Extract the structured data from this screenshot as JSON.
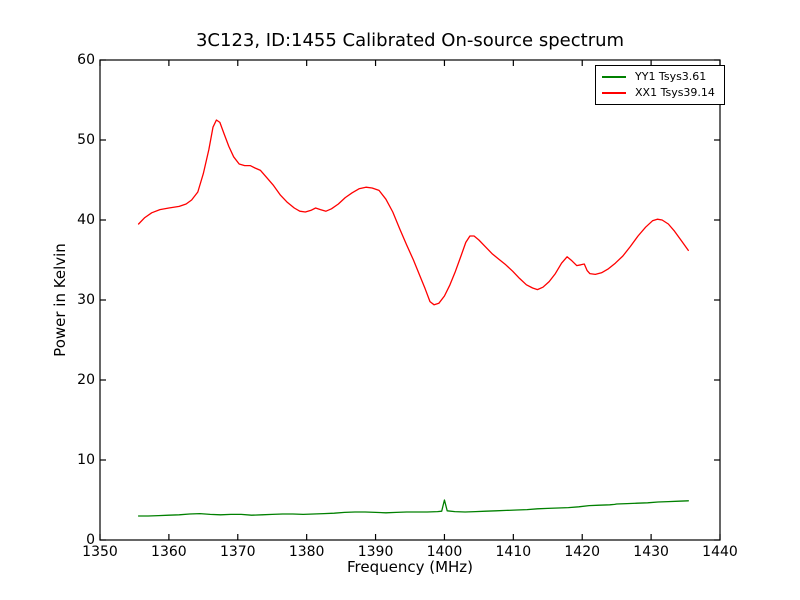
{
  "figure": {
    "background": "#ffffff"
  },
  "chart_data": {
    "type": "line",
    "title": "3C123, ID:1455 Calibrated On-source spectrum",
    "xlabel": "Frequency (MHz)",
    "ylabel": "Power in Kelvin",
    "xlim": [
      1350,
      1440
    ],
    "ylim": [
      0,
      60
    ],
    "xticks": [
      1350,
      1360,
      1370,
      1380,
      1390,
      1400,
      1410,
      1420,
      1430,
      1440
    ],
    "yticks": [
      0,
      10,
      20,
      30,
      40,
      50,
      60
    ],
    "grid": false,
    "tick_direction": "in",
    "axes_color": "#000000",
    "legend": {
      "position": "upper right",
      "border_color": "#000000",
      "entries": [
        {
          "label": "YY1 Tsys3.61",
          "color": "#008000"
        },
        {
          "label": "XX1 Tsys39.14",
          "color": "#ff0000"
        }
      ]
    },
    "series": [
      {
        "name": "YY1 Tsys3.61",
        "color": "#008000",
        "x": [
          1355.6,
          1357.0,
          1358.5,
          1360.0,
          1361.5,
          1363.0,
          1364.5,
          1366.0,
          1367.5,
          1369.0,
          1370.5,
          1372.0,
          1373.5,
          1375.0,
          1376.5,
          1378.0,
          1379.5,
          1381.0,
          1382.5,
          1384.0,
          1385.5,
          1387.0,
          1388.5,
          1390.0,
          1391.5,
          1393.0,
          1394.5,
          1396.0,
          1397.5,
          1399.0,
          1399.6,
          1400.0,
          1400.4,
          1401.5,
          1403.0,
          1404.5,
          1406.0,
          1407.5,
          1409.0,
          1410.5,
          1412.0,
          1413.5,
          1415.0,
          1416.5,
          1418.0,
          1419.5,
          1421.0,
          1422.5,
          1424.0,
          1424.7,
          1425.0,
          1426.5,
          1428.0,
          1429.5,
          1431.0,
          1432.5,
          1434.0,
          1435.4
        ],
        "y": [
          3.0,
          3.0,
          3.05,
          3.1,
          3.15,
          3.25,
          3.3,
          3.2,
          3.15,
          3.2,
          3.2,
          3.1,
          3.15,
          3.2,
          3.25,
          3.25,
          3.2,
          3.25,
          3.3,
          3.35,
          3.45,
          3.5,
          3.5,
          3.45,
          3.4,
          3.45,
          3.5,
          3.5,
          3.5,
          3.55,
          3.6,
          5.0,
          3.65,
          3.55,
          3.5,
          3.55,
          3.6,
          3.65,
          3.7,
          3.75,
          3.8,
          3.9,
          3.95,
          4.0,
          4.05,
          4.15,
          4.3,
          4.35,
          4.4,
          4.45,
          4.5,
          4.55,
          4.6,
          4.65,
          4.75,
          4.8,
          4.85,
          4.9
        ]
      },
      {
        "name": "XX1 Tsys39.14",
        "color": "#ff0000",
        "x": [
          1355.6,
          1356.5,
          1357.5,
          1358.7,
          1360.0,
          1361.5,
          1362.5,
          1363.3,
          1364.2,
          1365.0,
          1365.8,
          1366.4,
          1366.9,
          1367.4,
          1368.0,
          1368.7,
          1369.4,
          1370.2,
          1371.0,
          1371.8,
          1372.5,
          1373.3,
          1374.2,
          1375.2,
          1376.2,
          1377.2,
          1378.2,
          1379.0,
          1379.8,
          1380.6,
          1381.3,
          1382.0,
          1382.8,
          1383.6,
          1384.6,
          1385.6,
          1386.6,
          1387.6,
          1388.6,
          1389.5,
          1390.5,
          1391.5,
          1392.5,
          1393.5,
          1394.5,
          1395.5,
          1396.4,
          1397.2,
          1397.9,
          1398.5,
          1399.2,
          1400.0,
          1400.8,
          1401.6,
          1402.4,
          1403.1,
          1403.7,
          1404.3,
          1405.0,
          1405.9,
          1406.9,
          1407.9,
          1408.9,
          1409.9,
          1410.9,
          1411.9,
          1412.8,
          1413.5,
          1414.3,
          1415.2,
          1416.1,
          1417.0,
          1417.8,
          1418.5,
          1419.2,
          1419.8,
          1420.3,
          1420.7,
          1421.1,
          1421.9,
          1422.8,
          1423.8,
          1424.8,
          1425.9,
          1427.0,
          1428.1,
          1429.2,
          1430.2,
          1430.9,
          1431.6,
          1432.5,
          1433.4,
          1434.4,
          1435.4
        ],
        "y": [
          39.5,
          40.3,
          40.9,
          41.3,
          41.5,
          41.7,
          42.0,
          42.5,
          43.5,
          45.8,
          48.8,
          51.6,
          52.5,
          52.2,
          50.8,
          49.2,
          47.9,
          47.0,
          46.8,
          46.8,
          46.5,
          46.2,
          45.3,
          44.3,
          43.1,
          42.2,
          41.5,
          41.1,
          41.0,
          41.2,
          41.5,
          41.3,
          41.1,
          41.4,
          42.0,
          42.8,
          43.4,
          43.9,
          44.1,
          44.0,
          43.7,
          42.6,
          41.0,
          38.9,
          36.9,
          35.0,
          33.1,
          31.4,
          29.8,
          29.4,
          29.6,
          30.5,
          31.9,
          33.6,
          35.5,
          37.2,
          38.0,
          38.0,
          37.5,
          36.7,
          35.8,
          35.1,
          34.4,
          33.6,
          32.7,
          31.9,
          31.5,
          31.3,
          31.6,
          32.3,
          33.3,
          34.6,
          35.4,
          34.9,
          34.3,
          34.4,
          34.5,
          33.7,
          33.3,
          33.2,
          33.4,
          33.9,
          34.6,
          35.5,
          36.7,
          38.0,
          39.1,
          39.9,
          40.1,
          40.0,
          39.5,
          38.6,
          37.4,
          36.2
        ]
      }
    ]
  }
}
